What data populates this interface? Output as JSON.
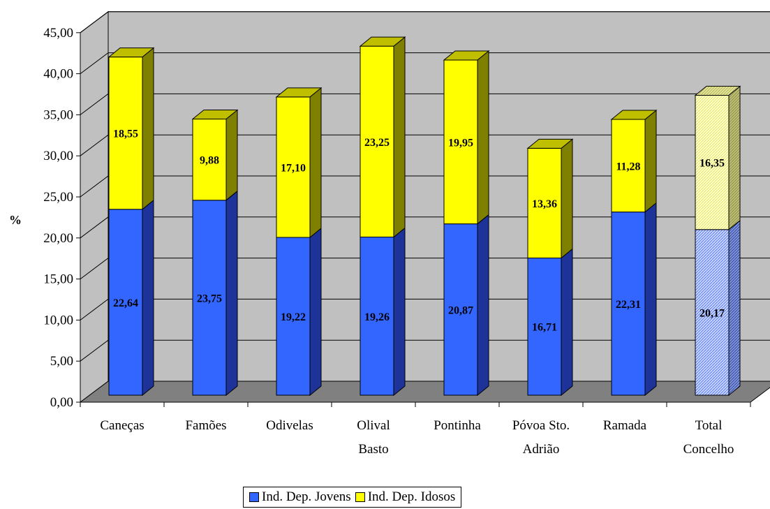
{
  "chart_data": {
    "type": "bar",
    "stacked": true,
    "ylabel": "%",
    "ylim": [
      0,
      45
    ],
    "y_ticks": [
      "0,00",
      "5,00",
      "10,00",
      "15,00",
      "20,00",
      "25,00",
      "30,00",
      "35,00",
      "40,00",
      "45,00"
    ],
    "categories": [
      [
        "Caneças"
      ],
      [
        "Famões"
      ],
      [
        "Odivelas"
      ],
      [
        "Olival",
        "Basto"
      ],
      [
        "Pontinha"
      ],
      [
        "Póvoa Sto.",
        "Adrião"
      ],
      [
        "Ramada"
      ],
      [
        "Total",
        "Concelho"
      ]
    ],
    "series": [
      {
        "name": "Ind. Dep. Jovens",
        "values": [
          22.64,
          23.75,
          19.22,
          19.26,
          20.87,
          16.71,
          22.31,
          20.17
        ],
        "labels": [
          "22,64",
          "23,75",
          "19,22",
          "19,26",
          "20,87",
          "16,71",
          "22,31",
          "20,17"
        ]
      },
      {
        "name": "Ind. Dep. Idosos",
        "values": [
          18.55,
          9.88,
          17.1,
          23.25,
          19.95,
          13.36,
          11.28,
          16.35
        ],
        "labels": [
          "18,55",
          "9,88",
          "17,10",
          "23,25",
          "19,95",
          "13,36",
          "11,28",
          "16,35"
        ]
      }
    ],
    "legend_position": "bottom",
    "grid": true,
    "colors": {
      "jovens": "#3366FF",
      "idosos": "#FFFF00",
      "wall": "#C0C0C0",
      "floor": "#808080"
    }
  }
}
